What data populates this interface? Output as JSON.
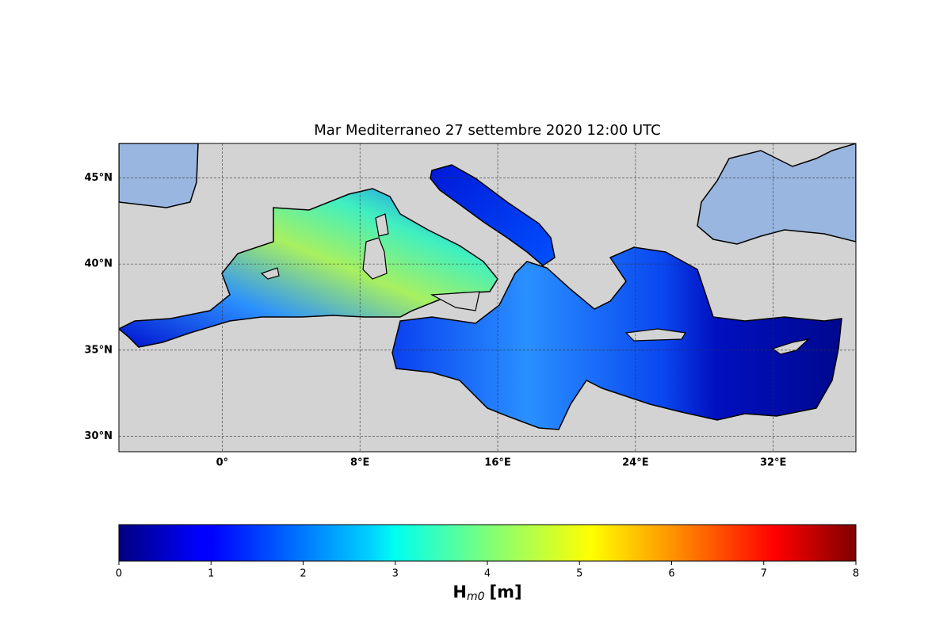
{
  "map": {
    "title": "Mar Mediterraneo 27 settembre 2020  12:00 UTC",
    "xlim": [
      -6,
      36.8
    ],
    "ylim": [
      29.1,
      47
    ],
    "xticks": [
      {
        "value": 0,
        "label": "0°"
      },
      {
        "value": 8,
        "label": "8°E"
      },
      {
        "value": 16,
        "label": "16°E"
      },
      {
        "value": 24,
        "label": "24°E"
      },
      {
        "value": 32,
        "label": "32°E"
      }
    ],
    "yticks": [
      {
        "value": 30,
        "label": "30°N"
      },
      {
        "value": 35,
        "label": "35°N"
      },
      {
        "value": 40,
        "label": "40°N"
      },
      {
        "value": 45,
        "label": "45°N"
      }
    ],
    "grid": true
  },
  "colorbar": {
    "label_symbol": "H",
    "label_subscript": "m0",
    "label_unit": "[m]",
    "lim": [
      0,
      8
    ],
    "ticks": [
      0,
      1,
      2,
      3,
      4,
      5,
      6,
      7,
      8
    ]
  }
}
